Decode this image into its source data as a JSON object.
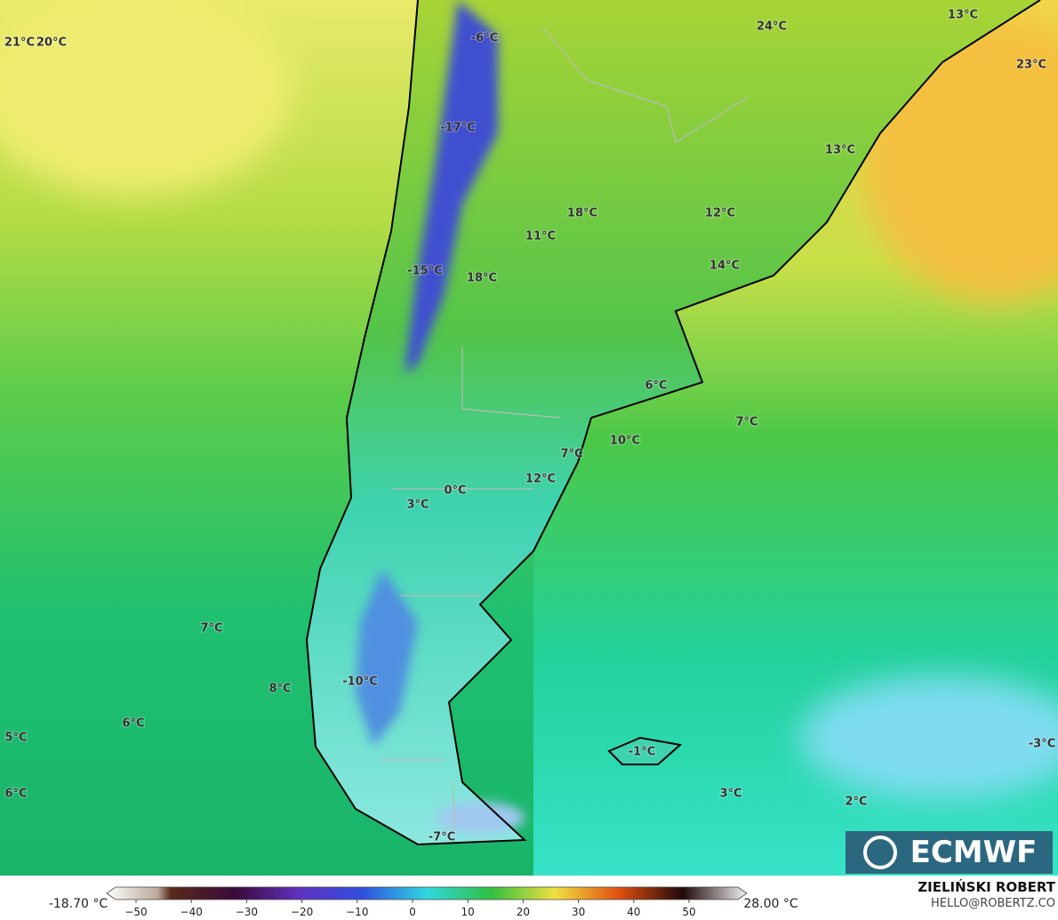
{
  "map": {
    "labels": [
      "21°C",
      "20°C",
      "-6°C",
      "24°C",
      "13°C",
      "23°C",
      "-17°C",
      "13°C",
      "18°C",
      "12°C",
      "11°C",
      "-15°C",
      "18°C",
      "14°C",
      "6°C",
      "7°C",
      "10°C",
      "7°C",
      "12°C",
      "0°C",
      "3°C",
      "7°C",
      "8°C",
      "-10°C",
      "6°C",
      "5°C",
      "-1°C",
      "-3°C",
      "6°C",
      "3°C",
      "2°C",
      "-7°C"
    ],
    "logo": "ECMWF",
    "colorbar": {
      "min_label": "-18.70 °C",
      "max_label": "28.00 °C",
      "ticks": [
        "−50",
        "−40",
        "−30",
        "−20",
        "−10",
        "0",
        "10",
        "20",
        "30",
        "40",
        "50"
      ]
    },
    "credit": {
      "name": "ZIELIŃSKI ROBERT",
      "email": "HELLO@ROBERTZ.CO"
    }
  }
}
